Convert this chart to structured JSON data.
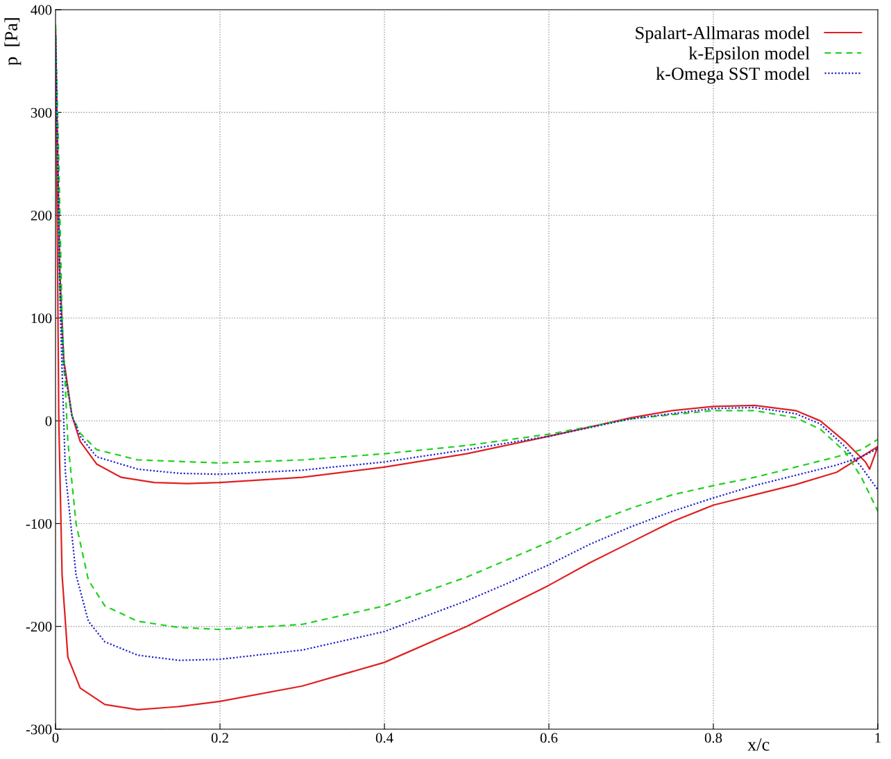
{
  "chart_data": {
    "type": "line",
    "xlabel": "x/c",
    "ylabel": "p  [Pa]",
    "xlim": [
      0,
      1
    ],
    "ylim": [
      -300,
      400
    ],
    "xticks": [
      0,
      0.2,
      0.4,
      0.6,
      0.8,
      1
    ],
    "yticks": [
      -300,
      -200,
      -100,
      0,
      100,
      200,
      300,
      400
    ],
    "grid": true,
    "legend": "top right",
    "marker": "none",
    "series": [
      {
        "name": "Spalart-Allmaras model",
        "color": "#e02020",
        "line_style": "solid",
        "x": [
          0,
          0.005,
          0.01,
          0.02,
          0.03,
          0.05,
          0.08,
          0.12,
          0.16,
          0.2,
          0.3,
          0.4,
          0.5,
          0.6,
          0.7,
          0.75,
          0.8,
          0.85,
          0.9,
          0.93,
          0.96,
          0.985,
          0.99,
          1.0
        ],
        "values": [
          380,
          150,
          60,
          5,
          -20,
          -42,
          -55,
          -60,
          -61,
          -60,
          -55,
          -45,
          -32,
          -15,
          3,
          10,
          14,
          15,
          10,
          0,
          -20,
          -40,
          -47,
          -25
        ]
      },
      {
        "color": "#e02020",
        "line_style": "solid",
        "x": [
          0,
          0.002,
          0.004,
          0.008,
          0.015,
          0.03,
          0.06,
          0.1,
          0.15,
          0.2,
          0.3,
          0.4,
          0.5,
          0.55,
          0.6,
          0.65,
          0.7,
          0.75,
          0.8,
          0.85,
          0.9,
          0.95,
          0.98,
          1.0
        ],
        "values": [
          380,
          200,
          0,
          -150,
          -230,
          -260,
          -276,
          -281,
          -278,
          -273,
          -258,
          -235,
          -200,
          -180,
          -160,
          -138,
          -118,
          -98,
          -82,
          -72,
          -62,
          -50,
          -35,
          -25
        ]
      },
      {
        "name": "k-Epsilon model",
        "color": "#20d020",
        "line_style": "dashed",
        "x": [
          0,
          0.005,
          0.01,
          0.02,
          0.03,
          0.05,
          0.1,
          0.2,
          0.3,
          0.4,
          0.5,
          0.6,
          0.7,
          0.8,
          0.85,
          0.9,
          0.93,
          0.96,
          0.98,
          1.0
        ],
        "values": [
          385,
          130,
          50,
          5,
          -12,
          -28,
          -38,
          -41,
          -38,
          -32,
          -24,
          -13,
          2,
          10,
          10,
          3,
          -8,
          -30,
          -55,
          -88
        ]
      },
      {
        "color": "#20d020",
        "line_style": "dashed",
        "x": [
          0,
          0.004,
          0.008,
          0.015,
          0.025,
          0.04,
          0.06,
          0.1,
          0.15,
          0.2,
          0.3,
          0.4,
          0.5,
          0.55,
          0.6,
          0.65,
          0.7,
          0.75,
          0.8,
          0.85,
          0.9,
          0.95,
          0.98,
          1.0
        ],
        "values": [
          385,
          250,
          100,
          -20,
          -100,
          -155,
          -180,
          -195,
          -201,
          -203,
          -198,
          -180,
          -152,
          -135,
          -118,
          -100,
          -85,
          -72,
          -63,
          -55,
          -45,
          -35,
          -28,
          -18
        ]
      },
      {
        "name": "k-Omega SST model",
        "color": "#2020d0",
        "line_style": "dotted",
        "x": [
          0,
          0.005,
          0.01,
          0.02,
          0.03,
          0.05,
          0.1,
          0.15,
          0.2,
          0.3,
          0.4,
          0.5,
          0.6,
          0.7,
          0.8,
          0.85,
          0.9,
          0.93,
          0.96,
          0.98,
          1.0
        ],
        "values": [
          375,
          140,
          55,
          5,
          -15,
          -35,
          -47,
          -51,
          -52,
          -48,
          -40,
          -28,
          -15,
          2,
          12,
          13,
          7,
          -3,
          -25,
          -45,
          -67
        ]
      },
      {
        "color": "#2020d0",
        "line_style": "dotted",
        "x": [
          0,
          0.003,
          0.006,
          0.012,
          0.025,
          0.04,
          0.06,
          0.1,
          0.15,
          0.2,
          0.3,
          0.4,
          0.5,
          0.55,
          0.6,
          0.65,
          0.7,
          0.75,
          0.8,
          0.85,
          0.9,
          0.95,
          0.98,
          1.0
        ],
        "values": [
          375,
          250,
          100,
          -50,
          -150,
          -195,
          -215,
          -228,
          -233,
          -232,
          -223,
          -205,
          -175,
          -158,
          -140,
          -120,
          -103,
          -88,
          -75,
          -63,
          -53,
          -43,
          -35,
          -27
        ]
      }
    ]
  }
}
